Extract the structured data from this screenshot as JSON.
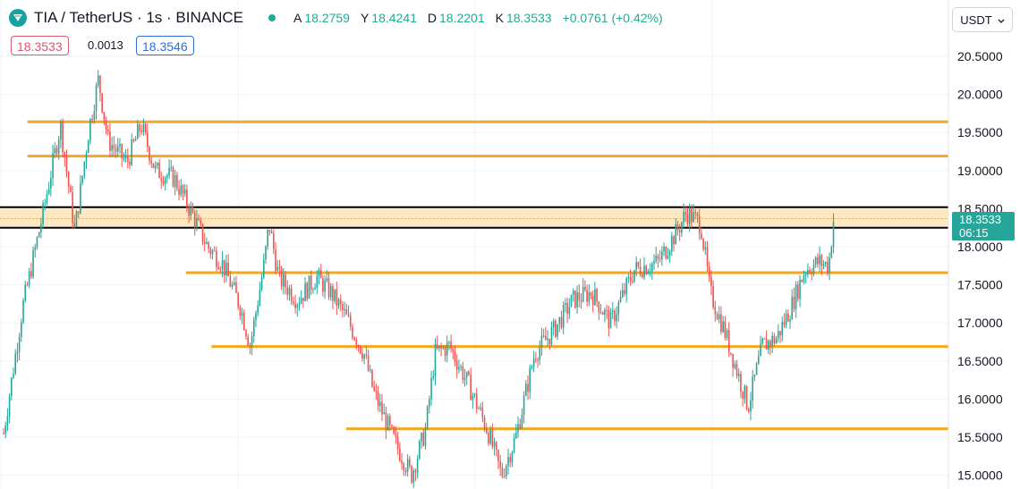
{
  "header": {
    "title": "TIA / TetherUS · 1s · BINANCE",
    "ohlc": [
      {
        "key": "A",
        "value": "18.2759"
      },
      {
        "key": "Y",
        "value": "18.4241"
      },
      {
        "key": "D",
        "value": "18.2201"
      },
      {
        "key": "K",
        "value": "18.3533"
      },
      {
        "key": "",
        "value": "+0.0761 (+0.42%)"
      }
    ]
  },
  "trade": {
    "sell_price": "18.3533",
    "spread": "0.0013",
    "buy_price": "18.3546"
  },
  "currency": {
    "label": "USDT"
  },
  "last_price": {
    "price": "18.3533",
    "countdown": "06:15"
  },
  "colors": {
    "up": "#26a69a",
    "down": "#ef5350",
    "level_line": "#f5a623",
    "zone_fill": "#fde8c3",
    "zone_border": "#000000"
  },
  "chart_data": {
    "type": "candlestick",
    "symbol": "TIA / TetherUS",
    "interval": "1s",
    "exchange": "BINANCE",
    "ylim": [
      14.8,
      20.95
    ],
    "y_ticks": [
      "20.5000",
      "20.0000",
      "19.5000",
      "19.0000",
      "18.5000",
      "18.0000",
      "17.5000",
      "17.0000",
      "16.5000",
      "16.0000",
      "15.5000",
      "15.0000"
    ],
    "y_tick_values": [
      20.5,
      20.0,
      19.5,
      19.0,
      18.5,
      18.0,
      17.5,
      17.0,
      16.5,
      16.0,
      15.5,
      15.0
    ],
    "horizontal_levels": [
      {
        "price": 19.64,
        "x_start": 0.029
      },
      {
        "price": 19.19,
        "x_start": 0.029
      },
      {
        "price": 17.66,
        "x_start": 0.196
      },
      {
        "price": 16.69,
        "x_start": 0.223
      },
      {
        "price": 15.61,
        "x_start": 0.365
      }
    ],
    "zone": {
      "top": 18.52,
      "bottom": 18.25,
      "mid": 18.37
    },
    "price_path": [
      [
        0,
        15.55
      ],
      [
        0.02,
        17.2
      ],
      [
        0.04,
        18.35
      ],
      [
        0.06,
        19.6
      ],
      [
        0.075,
        18.2
      ],
      [
        0.09,
        19.55
      ],
      [
        0.1,
        20.2
      ],
      [
        0.11,
        19.4
      ],
      [
        0.13,
        19.1
      ],
      [
        0.145,
        19.6
      ],
      [
        0.16,
        19.0
      ],
      [
        0.18,
        18.9
      ],
      [
        0.2,
        18.4
      ],
      [
        0.215,
        18.0
      ],
      [
        0.23,
        17.8
      ],
      [
        0.25,
        17.2
      ],
      [
        0.26,
        16.7
      ],
      [
        0.275,
        17.8
      ],
      [
        0.28,
        18.3
      ],
      [
        0.29,
        17.6
      ],
      [
        0.31,
        17.3
      ],
      [
        0.33,
        17.6
      ],
      [
        0.345,
        17.4
      ],
      [
        0.36,
        17.1
      ],
      [
        0.38,
        16.6
      ],
      [
        0.39,
        16.1
      ],
      [
        0.41,
        15.5
      ],
      [
        0.43,
        15.0
      ],
      [
        0.445,
        15.6
      ],
      [
        0.455,
        16.6
      ],
      [
        0.47,
        16.7
      ],
      [
        0.49,
        16.2
      ],
      [
        0.51,
        15.6
      ],
      [
        0.525,
        15.0
      ],
      [
        0.54,
        15.5
      ],
      [
        0.56,
        16.6
      ],
      [
        0.58,
        16.9
      ],
      [
        0.6,
        17.3
      ],
      [
        0.62,
        17.4
      ],
      [
        0.64,
        17.0
      ],
      [
        0.665,
        17.7
      ],
      [
        0.69,
        17.8
      ],
      [
        0.71,
        18.2
      ],
      [
        0.72,
        18.45
      ],
      [
        0.735,
        18.3
      ],
      [
        0.745,
        17.4
      ],
      [
        0.76,
        16.9
      ],
      [
        0.775,
        16.3
      ],
      [
        0.785,
        15.9
      ],
      [
        0.8,
        16.7
      ],
      [
        0.815,
        16.8
      ],
      [
        0.83,
        17.2
      ],
      [
        0.845,
        17.7
      ],
      [
        0.86,
        17.8
      ],
      [
        0.87,
        17.75
      ],
      [
        0.875,
        18.35
      ]
    ]
  }
}
